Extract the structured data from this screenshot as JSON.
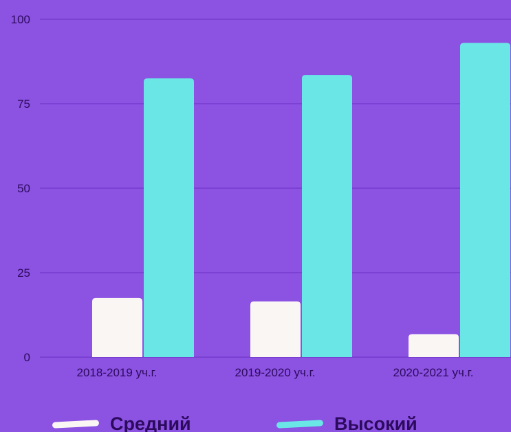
{
  "colors": {
    "background": "#8C52E2",
    "gridline": "#6A30C4",
    "text": "#2C0A5E",
    "series_medium": "#FAF6F4",
    "series_high": "#6AE6E6"
  },
  "chart_data": {
    "type": "bar",
    "categories": [
      "2018-2019 уч.г.",
      "2019-2020 уч.г.",
      "2020-2021 уч.г."
    ],
    "series": [
      {
        "name": "Средний",
        "values": [
          17.5,
          16.5,
          6.8
        ]
      },
      {
        "name": "Высокий",
        "values": [
          82.5,
          83.5,
          93
        ]
      }
    ],
    "ylim": [
      0,
      100
    ],
    "yticks": [
      "0",
      "25",
      "50",
      "75",
      "100"
    ],
    "grid": true,
    "legend_position": "bottom",
    "title": "",
    "xlabel": "",
    "ylabel": ""
  }
}
